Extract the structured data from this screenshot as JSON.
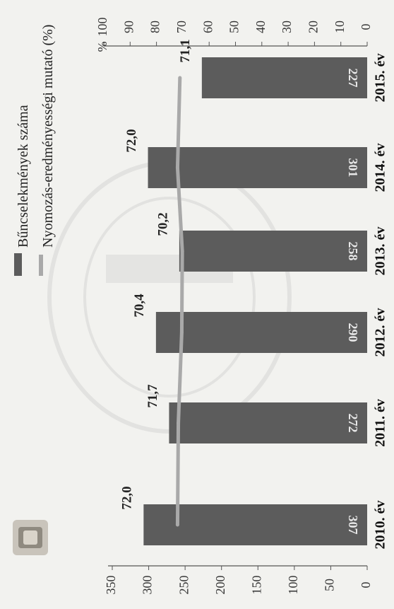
{
  "chart_data": {
    "type": "bar",
    "orientation": "rotated-90-clockwise",
    "categories": [
      "2010. év",
      "2011. év",
      "2012. év",
      "2013. év",
      "2014. év",
      "2015. év"
    ],
    "series": [
      {
        "name": "Bűncselekmények száma",
        "kind": "bar",
        "axis": "left",
        "color": "#5c5c5c",
        "values": [
          307,
          272,
          290,
          258,
          301,
          227
        ]
      },
      {
        "name": "Nyomozás-eredményességi mutató (%)",
        "kind": "line",
        "axis": "right",
        "color": "#a9a9a9",
        "values": [
          72.0,
          71.7,
          70.4,
          70.2,
          72.0,
          71.1
        ],
        "labels": [
          "72,0",
          "71,7",
          "70,4",
          "70,2",
          "72,0",
          "71,1"
        ]
      }
    ],
    "left_axis": {
      "ylim": [
        0,
        350
      ],
      "ticks": [
        "0",
        "50",
        "100",
        "150",
        "200",
        "250",
        "300",
        "350"
      ]
    },
    "right_axis": {
      "unit": "%",
      "ylim": [
        0,
        100
      ],
      "ticks": [
        "0",
        "10",
        "20",
        "30",
        "40",
        "50",
        "60",
        "70",
        "80",
        "90",
        "100"
      ]
    },
    "legend": {
      "position": "top-left"
    },
    "grid": false
  }
}
